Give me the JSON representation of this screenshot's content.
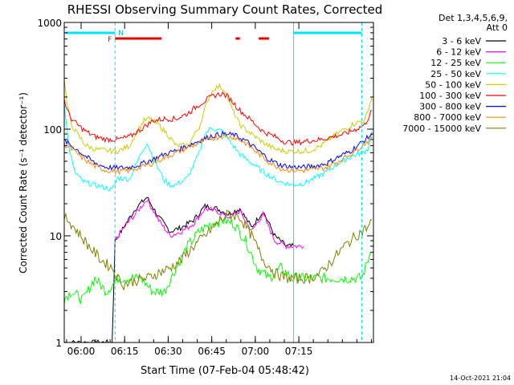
{
  "chart_data": {
    "type": "line",
    "title": "RHESSI Observing Summary Count Rates, Corrected",
    "xlabel": "Start Time (07-Feb-04 05:48:42)",
    "ylabel": "Corrected Count Rate (s⁻¹ detector⁻¹)",
    "yscale": "log",
    "ylim": [
      1,
      1000
    ],
    "xlim_minutes": [
      5.5,
      112
    ],
    "xticks": [
      {
        "minute": 11.3,
        "label": "06:00"
      },
      {
        "minute": 26.3,
        "label": "06:15"
      },
      {
        "minute": 41.3,
        "label": "06:30"
      },
      {
        "minute": 56.3,
        "label": "06:45"
      },
      {
        "minute": 71.3,
        "label": "07:00"
      },
      {
        "minute": 86.3,
        "label": "07:15"
      }
    ],
    "yticks": [
      {
        "value": 1,
        "label": "1"
      },
      {
        "value": 10,
        "label": "10"
      },
      {
        "value": 100,
        "label": "100"
      },
      {
        "value": 1000,
        "label": "1000"
      }
    ],
    "detectors_label": "Det 1,3,4,5,6,9,",
    "attenuator_label": "Att 0",
    "legend_position": "right",
    "flag_labels": {
      "flare": "F",
      "night": "N"
    },
    "flare_intervals": [
      [
        23,
        39
      ],
      [
        64.5,
        66
      ],
      [
        72.5,
        76
      ]
    ],
    "night_intervals": [
      [
        6,
        23
      ],
      [
        84.5,
        108
      ]
    ],
    "night_boundaries": [
      23,
      84.5,
      108
    ],
    "timestamp": "14-Oct-2021 21:04",
    "series": [
      {
        "name": "3 - 6 keV",
        "color": "#000000",
        "x": [
          5.5,
          18,
          22,
          23,
          26,
          30,
          34,
          38,
          42,
          46,
          50,
          54,
          58,
          62,
          66,
          70,
          74,
          78,
          82,
          84.5
        ],
        "y": [
          1,
          1,
          1,
          9,
          12,
          18,
          23,
          15,
          11,
          12,
          14,
          19,
          18,
          16,
          18,
          12,
          17,
          10,
          8,
          8
        ]
      },
      {
        "name": "6 - 12 keV",
        "color": "#ff00ff",
        "x": [
          23,
          26,
          30,
          34,
          38,
          42,
          46,
          50,
          54,
          58,
          62,
          66,
          70,
          74,
          78,
          82,
          86,
          88
        ],
        "y": [
          9,
          12,
          16,
          22,
          14,
          10,
          11,
          13,
          18,
          17,
          15,
          17,
          11,
          16,
          9,
          8,
          8,
          8
        ]
      },
      {
        "name": "12 - 25 keV",
        "color": "#00ff00",
        "x": [
          5.5,
          8,
          12,
          16,
          20,
          24,
          28,
          32,
          36,
          40,
          44,
          48,
          52,
          56,
          60,
          64,
          68,
          72,
          76,
          80,
          84,
          88,
          92,
          96,
          100,
          104,
          108,
          111
        ],
        "y": [
          2.6,
          3,
          2.5,
          4,
          3,
          4,
          4,
          4,
          3,
          3,
          5,
          8,
          11,
          13,
          14,
          13,
          9,
          5,
          4,
          5,
          4,
          4,
          4,
          4,
          4,
          4,
          4,
          7
        ]
      },
      {
        "name": "25 - 50 keV",
        "color": "#00ffff",
        "x": [
          5.5,
          7,
          9,
          12,
          16,
          20,
          22,
          24,
          28,
          30,
          32,
          34,
          36,
          38,
          40,
          42,
          44,
          48,
          52,
          54,
          56,
          58,
          60,
          62,
          66,
          70,
          74,
          78,
          80,
          84,
          88,
          92,
          96,
          100,
          104,
          108,
          110,
          111.5
        ],
        "y": [
          180,
          70,
          40,
          32,
          30,
          28,
          27,
          35,
          34,
          45,
          60,
          75,
          55,
          42,
          33,
          30,
          30,
          35,
          60,
          90,
          102,
          100,
          95,
          80,
          58,
          48,
          40,
          34,
          32,
          30,
          31,
          35,
          40,
          48,
          55,
          60,
          65,
          95
        ]
      },
      {
        "name": "50 - 100 keV",
        "color": "#cccc00",
        "x": [
          5.5,
          6.5,
          8,
          10,
          13,
          16,
          20,
          24,
          28,
          30,
          33,
          35,
          38,
          41,
          44,
          48,
          52,
          55,
          57,
          59,
          61,
          63,
          66,
          70,
          74,
          78,
          82,
          86,
          90,
          94,
          98,
          102,
          106,
          109,
          111.5
        ],
        "y": [
          300,
          170,
          110,
          90,
          70,
          65,
          63,
          62,
          70,
          90,
          120,
          125,
          110,
          90,
          70,
          70,
          105,
          190,
          240,
          250,
          230,
          160,
          110,
          90,
          75,
          65,
          62,
          62,
          63,
          70,
          85,
          100,
          115,
          120,
          200
        ]
      },
      {
        "name": "100 - 300 keV",
        "color": "#ff0000",
        "x": [
          5.5,
          6.5,
          8,
          10,
          13,
          16,
          20,
          24,
          28,
          32,
          36,
          40,
          44,
          48,
          52,
          56,
          58,
          60,
          62,
          66,
          70,
          74,
          78,
          82,
          86,
          90,
          94,
          98,
          102,
          106,
          109,
          111.5
        ],
        "y": [
          190,
          150,
          125,
          110,
          95,
          85,
          80,
          80,
          85,
          100,
          120,
          125,
          125,
          140,
          170,
          200,
          210,
          215,
          200,
          150,
          120,
          95,
          85,
          75,
          75,
          78,
          80,
          85,
          90,
          100,
          110,
          150
        ]
      },
      {
        "name": "300 - 800 keV",
        "color": "#0000ff",
        "x": [
          5.5,
          8,
          12,
          16,
          20,
          24,
          28,
          32,
          36,
          40,
          44,
          48,
          52,
          56,
          60,
          64,
          68,
          72,
          76,
          80,
          84,
          88,
          92,
          96,
          100,
          104,
          108,
          111.5
        ],
        "y": [
          78,
          70,
          58,
          48,
          44,
          43,
          44,
          47,
          52,
          58,
          63,
          70,
          78,
          86,
          90,
          88,
          78,
          64,
          52,
          46,
          44,
          44,
          45,
          48,
          55,
          62,
          75,
          90
        ]
      },
      {
        "name": "800 - 7000 keV",
        "color": "#ff8800",
        "x": [
          5.5,
          8,
          12,
          16,
          20,
          24,
          28,
          32,
          36,
          40,
          44,
          48,
          52,
          56,
          60,
          64,
          68,
          72,
          76,
          80,
          84,
          88,
          92,
          96,
          100,
          104,
          108,
          111.5
        ],
        "y": [
          72,
          65,
          53,
          45,
          41,
          40,
          41,
          44,
          48,
          54,
          60,
          67,
          74,
          82,
          86,
          84,
          74,
          60,
          49,
          43,
          41,
          41,
          42,
          44,
          50,
          58,
          70,
          82
        ]
      },
      {
        "name": "7000 - 15000 keV",
        "color": "#808000",
        "x": [
          5.5,
          7,
          10,
          14,
          18,
          22,
          24,
          26,
          30,
          34,
          38,
          42,
          46,
          50,
          54,
          58,
          62,
          66,
          70,
          74,
          78,
          82,
          86,
          90,
          94,
          98,
          102,
          106,
          110,
          111.5
        ],
        "y": [
          15,
          14,
          11,
          8,
          6,
          5,
          4,
          3.5,
          3.8,
          4,
          4.5,
          5,
          6,
          8,
          10,
          13,
          16,
          15,
          10,
          6,
          4.5,
          4,
          4,
          4,
          4.5,
          6,
          8,
          10,
          12,
          14
        ]
      }
    ]
  }
}
